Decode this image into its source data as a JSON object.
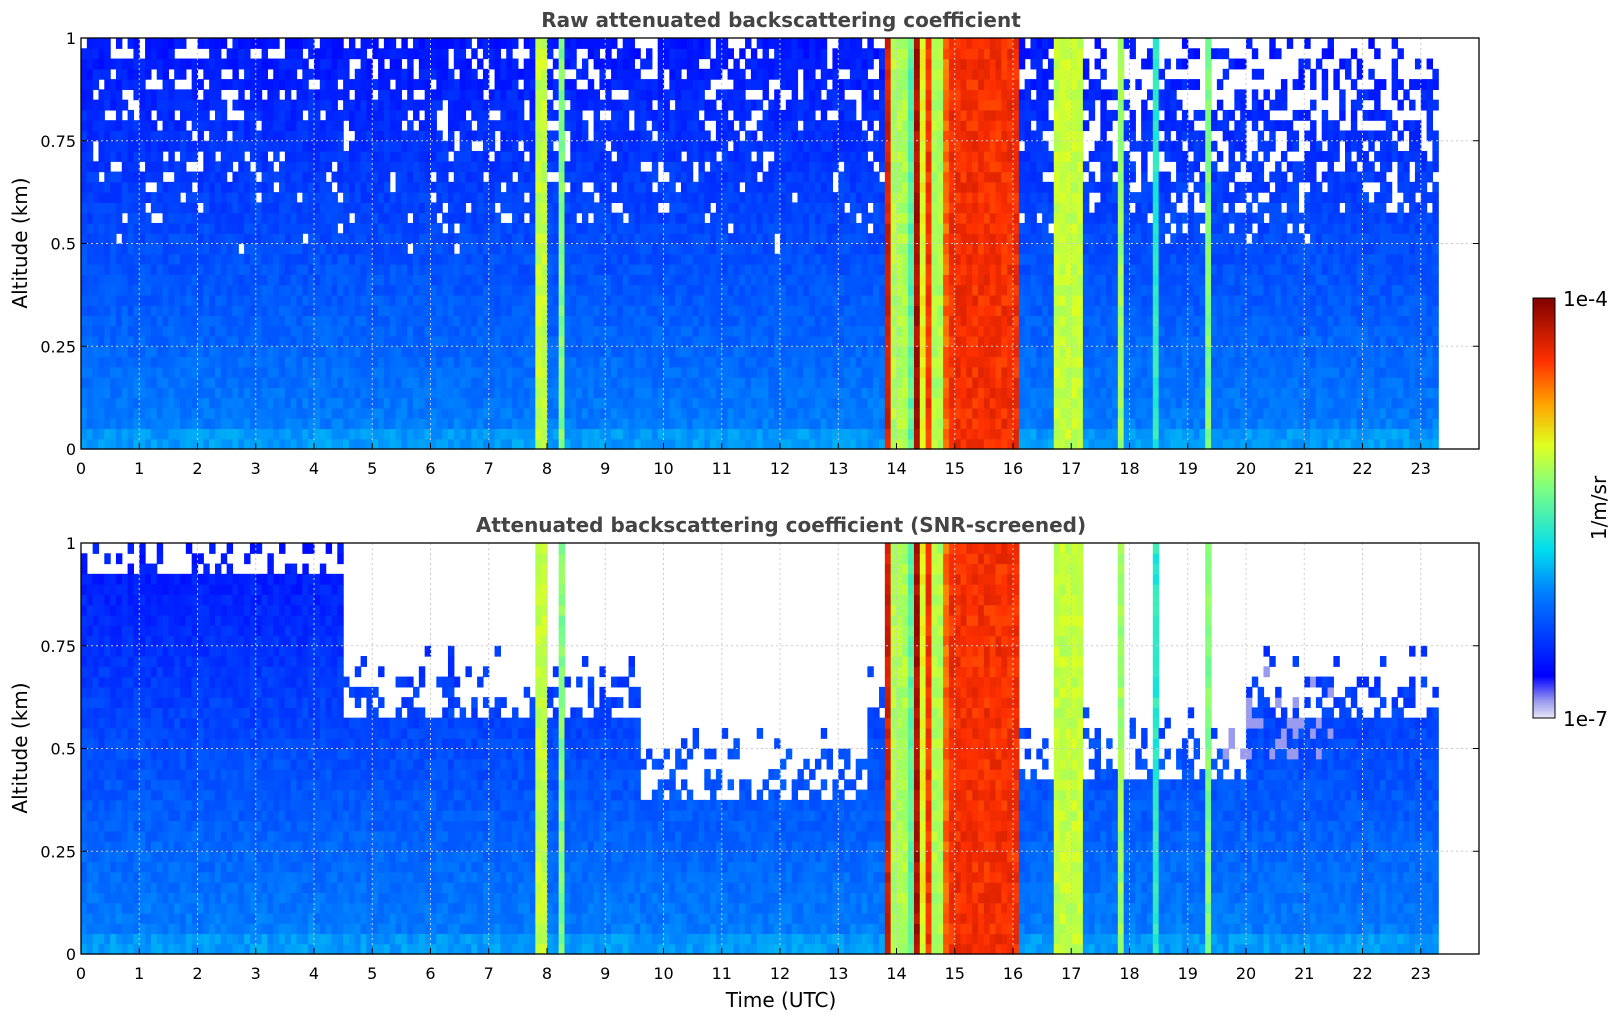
{
  "chart_data": [
    {
      "type": "heatmap",
      "title": "Raw attenuated backscattering coefficient",
      "xlabel": "",
      "ylabel": "Altitude (km)",
      "xlim": [
        0,
        24
      ],
      "ylim": [
        0,
        1
      ],
      "x_ticks": [
        "0",
        "1",
        "2",
        "3",
        "4",
        "5",
        "6",
        "7",
        "8",
        "9",
        "10",
        "11",
        "12",
        "13",
        "14",
        "15",
        "16",
        "17",
        "18",
        "19",
        "20",
        "21",
        "22",
        "23"
      ],
      "y_ticks": [
        "0",
        "0.25",
        "0.5",
        "0.75",
        "1"
      ],
      "grid": true,
      "data_end_time": 23.3,
      "screened": false,
      "features": [
        {
          "kind": "cloud",
          "start": 7.85,
          "end": 7.97,
          "level": 0.62
        },
        {
          "kind": "cloud",
          "start": 8.25,
          "end": 8.35,
          "level": 0.55
        },
        {
          "kind": "cloud",
          "start": 13.85,
          "end": 13.95,
          "level": 0.9
        },
        {
          "kind": "cloud",
          "start": 13.95,
          "end": 14.2,
          "level": 0.6
        },
        {
          "kind": "cloud",
          "start": 14.2,
          "end": 14.35,
          "level": 0.5
        },
        {
          "kind": "cloud",
          "start": 14.35,
          "end": 14.45,
          "level": 0.95
        },
        {
          "kind": "cloud",
          "start": 14.45,
          "end": 14.55,
          "level": 0.65
        },
        {
          "kind": "cloud",
          "start": 14.55,
          "end": 14.65,
          "level": 0.85
        },
        {
          "kind": "cloud",
          "start": 14.65,
          "end": 14.85,
          "level": 0.6
        },
        {
          "kind": "cloud",
          "start": 14.85,
          "end": 14.95,
          "level": 0.8
        },
        {
          "kind": "cloud",
          "start": 14.95,
          "end": 16.1,
          "level": 0.86
        },
        {
          "kind": "cloud",
          "start": 16.75,
          "end": 17.2,
          "level": 0.62
        },
        {
          "kind": "cloud",
          "start": 17.82,
          "end": 17.95,
          "level": 0.58
        },
        {
          "kind": "cloud",
          "start": 18.42,
          "end": 18.5,
          "level": 0.45
        },
        {
          "kind": "cloud",
          "start": 19.35,
          "end": 19.45,
          "level": 0.55
        }
      ]
    },
    {
      "type": "heatmap",
      "title": "Attenuated backscattering coefficient (SNR-screened)",
      "xlabel": "Time (UTC)",
      "ylabel": "Altitude (km)",
      "xlim": [
        0,
        24
      ],
      "ylim": [
        0,
        1
      ],
      "x_ticks": [
        "0",
        "1",
        "2",
        "3",
        "4",
        "5",
        "6",
        "7",
        "8",
        "9",
        "10",
        "11",
        "12",
        "13",
        "14",
        "15",
        "16",
        "17",
        "18",
        "19",
        "20",
        "21",
        "22",
        "23"
      ],
      "y_ticks": [
        "0",
        "0.25",
        "0.5",
        "0.75",
        "1"
      ],
      "grid": true,
      "data_end_time": 23.3,
      "screened": true,
      "features": [
        {
          "kind": "cloud",
          "start": 7.85,
          "end": 7.97,
          "level": 0.62
        },
        {
          "kind": "cloud",
          "start": 8.25,
          "end": 8.35,
          "level": 0.55
        },
        {
          "kind": "cloud",
          "start": 13.85,
          "end": 13.95,
          "level": 0.9
        },
        {
          "kind": "cloud",
          "start": 13.95,
          "end": 14.2,
          "level": 0.6
        },
        {
          "kind": "cloud",
          "start": 14.2,
          "end": 14.35,
          "level": 0.5
        },
        {
          "kind": "cloud",
          "start": 14.35,
          "end": 14.45,
          "level": 0.95
        },
        {
          "kind": "cloud",
          "start": 14.45,
          "end": 14.55,
          "level": 0.65
        },
        {
          "kind": "cloud",
          "start": 14.55,
          "end": 14.65,
          "level": 0.85
        },
        {
          "kind": "cloud",
          "start": 14.65,
          "end": 14.85,
          "level": 0.6
        },
        {
          "kind": "cloud",
          "start": 14.85,
          "end": 14.95,
          "level": 0.8
        },
        {
          "kind": "cloud",
          "start": 14.95,
          "end": 16.1,
          "level": 0.86
        },
        {
          "kind": "cloud",
          "start": 16.75,
          "end": 17.2,
          "level": 0.62
        },
        {
          "kind": "cloud",
          "start": 17.82,
          "end": 17.95,
          "level": 0.58
        },
        {
          "kind": "cloud",
          "start": 18.42,
          "end": 18.5,
          "level": 0.45
        },
        {
          "kind": "cloud",
          "start": 19.35,
          "end": 19.45,
          "level": 0.55
        }
      ]
    }
  ],
  "colorbar": {
    "label": "1/m/sr",
    "max_label": "1e-4",
    "min_label": "1e-7",
    "colormap": "jet"
  }
}
